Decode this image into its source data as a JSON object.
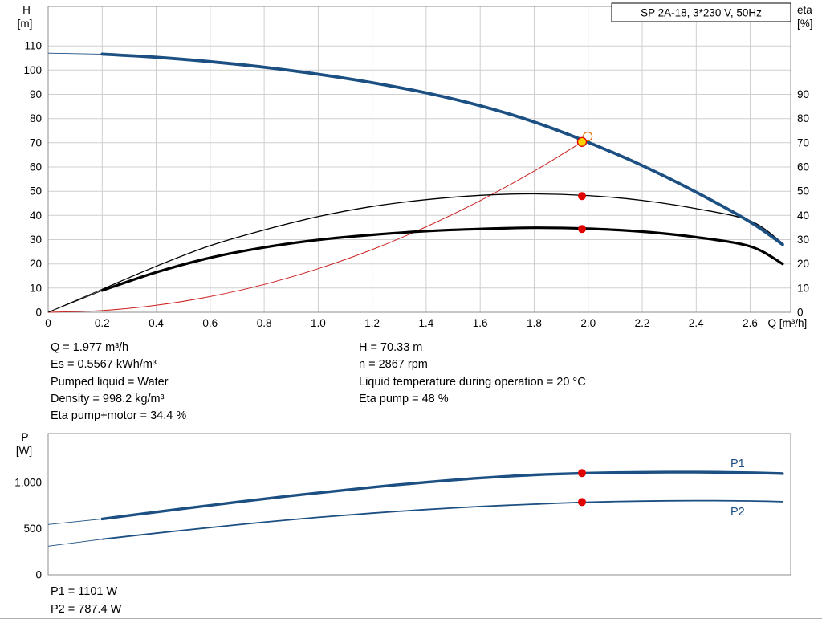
{
  "title_box": "SP 2A-18, 3*230 V, 50Hz",
  "colors": {
    "curve_blue": "#1c4f82",
    "curve_black": "#000000",
    "system_red": "#cc2222",
    "marker_red": "#e00000",
    "duty_yellow": "#ffd300",
    "ring_orange": "#e07000",
    "grid": "#cfcfcf",
    "frame": "#8c8c8c",
    "label_blue": "#1c4f82"
  },
  "chart_data": [
    {
      "type": "line",
      "title": "SP 2A-18, 3*230 V, 50Hz",
      "xlabel": "Q [m³/h]",
      "ylabel_left": [
        "H",
        "[m]"
      ],
      "ylabel_right": [
        "eta",
        "[%]"
      ],
      "xlim": [
        0,
        2.75
      ],
      "ylim_left": [
        0,
        126.3
      ],
      "x_tick_values": [
        0,
        0.2,
        0.4,
        0.6,
        0.8,
        1.0,
        1.2,
        1.4,
        1.6,
        1.8,
        2.0,
        2.2,
        2.4,
        2.6
      ],
      "x_tick_labels": [
        "0",
        "0.2",
        "0.4",
        "0.6",
        "0.8",
        "1.0",
        "1.2",
        "1.4",
        "1.6",
        "1.8",
        "2.0",
        "2.2",
        "2.4",
        "2.6"
      ],
      "y_tick_values_left": [
        0,
        10,
        20,
        30,
        40,
        50,
        60,
        70,
        80,
        90,
        100,
        110
      ],
      "y_tick_values_right": [
        0,
        10,
        20,
        30,
        40,
        50,
        60,
        70,
        80,
        90
      ],
      "grid": true,
      "series": [
        {
          "name": "system",
          "label": "System curve",
          "color": "#cc2222",
          "width": 1,
          "lead": false,
          "x": [
            0,
            0.2,
            0.4,
            0.6,
            0.8,
            1.0,
            1.2,
            1.4,
            1.6,
            1.8,
            1.977
          ],
          "values": [
            0,
            0.7,
            2.9,
            6.5,
            11.5,
            18.0,
            25.9,
            35.3,
            46.1,
            58.3,
            70.33
          ]
        },
        {
          "name": "eta-pump",
          "label": "Eta pump",
          "color": "#000000",
          "width": 1.3,
          "lead": true,
          "x": [
            0,
            0.2,
            0.4,
            0.6,
            0.8,
            1.0,
            1.2,
            1.4,
            1.6,
            1.8,
            2.0,
            2.2,
            2.4,
            2.6,
            2.72
          ],
          "values": [
            0,
            9.5,
            19,
            27.5,
            34,
            39.5,
            43.7,
            46.5,
            48.3,
            48.9,
            48.2,
            46.2,
            42.8,
            37.8,
            28.5
          ]
        },
        {
          "name": "eta-pump-motor",
          "label": "Eta pump+motor",
          "color": "#000000",
          "width": 3.2,
          "lead": true,
          "x": [
            0,
            0.2,
            0.4,
            0.6,
            0.8,
            1.0,
            1.2,
            1.4,
            1.6,
            1.8,
            2.0,
            2.2,
            2.4,
            2.6,
            2.72
          ],
          "values": [
            0,
            9,
            16.5,
            22.5,
            26.8,
            29.9,
            32,
            33.5,
            34.4,
            34.9,
            34.5,
            33.3,
            31,
            27.2,
            20
          ]
        },
        {
          "name": "hq",
          "label": "H",
          "color": "#1c4f82",
          "width": 3.8,
          "lead": true,
          "x": [
            0,
            0.2,
            0.4,
            0.6,
            0.8,
            1.0,
            1.2,
            1.4,
            1.6,
            1.8,
            2.0,
            2.2,
            2.4,
            2.6,
            2.72
          ],
          "values": [
            107,
            106.6,
            105.3,
            103.5,
            101.2,
            98.3,
            94.8,
            90.6,
            85.3,
            78.6,
            70.2,
            60.6,
            49.6,
            37.3,
            28
          ]
        }
      ],
      "markers": [
        {
          "name": "duty-ring",
          "x": 1.998,
          "y": 72.6,
          "style": "ring"
        },
        {
          "name": "duty-point",
          "x": 1.977,
          "y": 70.33,
          "style": "duty"
        },
        {
          "name": "eta-pump-point",
          "x": 1.977,
          "y": 48,
          "style": "dot"
        },
        {
          "name": "eta-pump-motor-point",
          "x": 1.977,
          "y": 34.4,
          "style": "dot"
        }
      ]
    },
    {
      "type": "line",
      "title": "",
      "xlabel": "",
      "ylabel_left": [
        "P",
        "[W]"
      ],
      "xlim": [
        0,
        2.75
      ],
      "ylim": [
        0,
        1530
      ],
      "y_tick_values": [
        0,
        500,
        1000
      ],
      "y_tick_labels": [
        "0",
        "500",
        "1,000"
      ],
      "grid": false,
      "series": [
        {
          "name": "p1",
          "label": "P1",
          "color": "#1c4f82",
          "width": 3.4,
          "lead": true,
          "x": [
            0,
            0.2,
            0.4,
            0.6,
            0.8,
            1.0,
            1.2,
            1.4,
            1.6,
            1.8,
            2.0,
            2.2,
            2.4,
            2.6,
            2.72
          ],
          "values": [
            545,
            605,
            680,
            752,
            822,
            888,
            948,
            1002,
            1048,
            1082,
            1101,
            1110,
            1112,
            1106,
            1096
          ]
        },
        {
          "name": "p2",
          "label": "P2",
          "color": "#1c4f82",
          "width": 1.8,
          "lead": true,
          "x": [
            0,
            0.2,
            0.4,
            0.6,
            0.8,
            1.0,
            1.2,
            1.4,
            1.6,
            1.8,
            2.0,
            2.2,
            2.4,
            2.6,
            2.72
          ],
          "values": [
            310,
            385,
            450,
            512,
            570,
            622,
            668,
            707,
            740,
            765,
            787,
            798,
            803,
            800,
            792
          ]
        }
      ],
      "markers": [
        {
          "name": "p1-point",
          "x": 1.977,
          "y": 1101,
          "style": "dot"
        },
        {
          "name": "p2-point",
          "x": 1.977,
          "y": 787.4,
          "style": "dot"
        }
      ],
      "series_labels": [
        {
          "name": "p1-label",
          "text": "P1"
        },
        {
          "name": "p2-label",
          "text": "P2"
        }
      ]
    }
  ],
  "info": {
    "left": [
      "Q = 1.977 m³/h",
      "Es = 0.5567 kWh/m³",
      "Pumped liquid = Water",
      "Density = 998.2 kg/m³",
      "Eta pump+motor = 34.4 %"
    ],
    "right": [
      "H = 70.33 m",
      "n = 2867 rpm",
      "Liquid temperature during operation = 20 °C",
      "Eta pump = 48 %"
    ]
  },
  "footer": {
    "p1": "P1 = 1101 W",
    "p2": "P2 = 787.4 W"
  }
}
